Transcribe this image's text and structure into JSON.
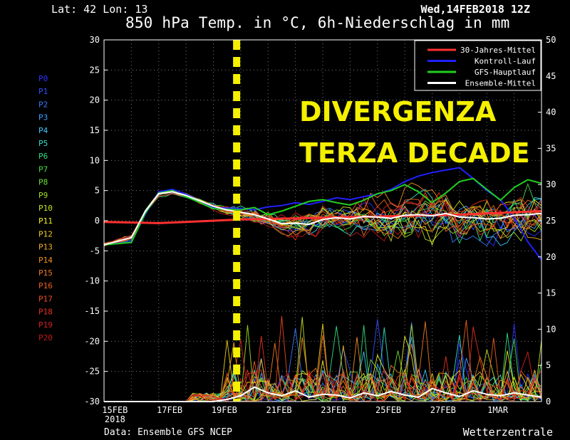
{
  "header": {
    "location": "Lat: 42 Lon: 13",
    "run": "Wed,14FEB2018 12Z",
    "title": "850 hPa Temp. in °C, 6h-Niederschlag in mm"
  },
  "footer": {
    "source": "Data: Ensemble GFS NCEP",
    "brand": "Wetterzentrale"
  },
  "annotation": {
    "line1": "DIVERGENZA",
    "line2": "TERZA DECADE",
    "color": "#f5f000"
  },
  "members": [
    {
      "label": "P0",
      "color": "#3030ff"
    },
    {
      "label": "P1",
      "color": "#3050ff"
    },
    {
      "label": "P2",
      "color": "#3878ff"
    },
    {
      "label": "P3",
      "color": "#40a0ff"
    },
    {
      "label": "P4",
      "color": "#40c8ff"
    },
    {
      "label": "P5",
      "color": "#30e0c8"
    },
    {
      "label": "P6",
      "color": "#30e080"
    },
    {
      "label": "P7",
      "color": "#40e040"
    },
    {
      "label": "P8",
      "color": "#70e030"
    },
    {
      "label": "P9",
      "color": "#a0e020"
    },
    {
      "label": "P10",
      "color": "#c8e020"
    },
    {
      "label": "P11",
      "color": "#f0f020"
    },
    {
      "label": "P12",
      "color": "#f0d020"
    },
    {
      "label": "P13",
      "color": "#f0b020"
    },
    {
      "label": "P14",
      "color": "#f09020"
    },
    {
      "label": "P15",
      "color": "#f07820"
    },
    {
      "label": "P16",
      "color": "#f06020"
    },
    {
      "label": "P17",
      "color": "#f04820"
    },
    {
      "label": "P18",
      "color": "#e83020"
    },
    {
      "label": "P19",
      "color": "#d82020"
    },
    {
      "label": "P20",
      "color": "#c01818"
    }
  ],
  "chart_data": {
    "type": "line",
    "x_axis": {
      "ticks": [
        "15FEB",
        "17FEB",
        "19FEB",
        "21FEB",
        "23FEB",
        "25FEB",
        "27FEB",
        "1MAR"
      ],
      "year_label": "2018",
      "range_days": [
        0,
        16
      ]
    },
    "y_left": {
      "range": [
        -30,
        30
      ],
      "ticks": [
        -30,
        -25,
        -20,
        -15,
        -10,
        -5,
        0,
        5,
        10,
        15,
        20,
        25,
        30
      ],
      "unit": "°C"
    },
    "y_right": {
      "range": [
        0,
        50
      ],
      "ticks": [
        0,
        5,
        10,
        15,
        20,
        25,
        30,
        35,
        40,
        45,
        50
      ],
      "unit": "mm"
    },
    "grid": true,
    "legend": {
      "position": "top-right",
      "entries": [
        {
          "name": "30-Jahres-Mittel",
          "color": "#ff3030"
        },
        {
          "name": "Kontroll-Lauf",
          "color": "#2020ff"
        },
        {
          "name": "GFS-Hauptlauf",
          "color": "#20d020"
        },
        {
          "name": "Ensemble-Mittel",
          "color": "#ffffff"
        }
      ]
    },
    "marker_line_day": 4.85,
    "series": [
      {
        "name": "30-Jahres-Mittel",
        "color": "#ff3030",
        "x": [
          0,
          1,
          2,
          3,
          4,
          5,
          6,
          7,
          8,
          9,
          10,
          11,
          12,
          13,
          14,
          15,
          16
        ],
        "y": [
          -0.2,
          -0.3,
          -0.4,
          -0.2,
          0,
          0.2,
          0.3,
          0.4,
          0.5,
          0.6,
          0.7,
          0.8,
          0.9,
          1.0,
          1.2,
          1.4,
          1.6
        ]
      },
      {
        "name": "Ensemble-Mittel",
        "color": "#ffffff",
        "x": [
          0,
          0.5,
          1,
          1.5,
          2,
          2.5,
          3,
          3.5,
          4,
          4.5,
          5,
          5.5,
          6,
          6.5,
          7,
          7.5,
          8,
          8.5,
          9,
          9.5,
          10,
          10.5,
          11,
          11.5,
          12,
          12.5,
          13,
          13.5,
          14,
          14.5,
          15,
          15.5,
          16
        ],
        "y": [
          -4,
          -3.4,
          -2.8,
          1.5,
          4.5,
          4.8,
          4.2,
          3.3,
          2.4,
          1.8,
          1.4,
          1.0,
          0.3,
          -0.5,
          -0.4,
          -0.6,
          0.2,
          0.5,
          0.3,
          0.7,
          0.6,
          0.4,
          0.9,
          1.0,
          0.8,
          1.2,
          0.6,
          0.5,
          0.3,
          0.4,
          0.9,
          1.0,
          1.2
        ]
      },
      {
        "name": "Kontroll-Lauf",
        "color": "#2020ff",
        "x": [
          0,
          1,
          1.5,
          2,
          2.5,
          3,
          4,
          5,
          5.5,
          6,
          6.5,
          7,
          7.5,
          8,
          8.5,
          9,
          9.5,
          10,
          10.5,
          11,
          11.5,
          12,
          12.5,
          13,
          13.5,
          14,
          14.5,
          15,
          15.5,
          16
        ],
        "y": [
          -4,
          -3.5,
          1,
          4.8,
          5.2,
          4.4,
          2.2,
          2.0,
          1.8,
          2.3,
          2.5,
          3.0,
          2.7,
          3.2,
          3.8,
          3.5,
          4.0,
          4.4,
          5.2,
          6.5,
          7.4,
          8.0,
          8.4,
          8.8,
          7.0,
          5.0,
          3.5,
          0.5,
          -3.5,
          -6.5
        ]
      },
      {
        "name": "GFS-Hauptlauf",
        "color": "#20d020",
        "x": [
          0,
          1,
          1.5,
          2,
          2.5,
          3,
          4,
          5,
          5.5,
          6,
          6.5,
          7,
          7.5,
          8,
          8.5,
          9,
          9.5,
          10,
          10.5,
          11,
          11.5,
          12,
          12.5,
          13,
          13.5,
          14,
          14.5,
          15,
          15.5,
          16
        ],
        "y": [
          -4,
          -3.6,
          1.2,
          4.6,
          5.0,
          4.0,
          2.0,
          1.8,
          2.2,
          1.0,
          1.6,
          2.4,
          3.2,
          3.5,
          3.0,
          2.6,
          3.4,
          4.5,
          5.0,
          6.0,
          4.8,
          3.0,
          4.6,
          6.5,
          7.0,
          5.2,
          3.4,
          5.5,
          6.8,
          6.2
        ]
      }
    ],
    "precip_mean": {
      "name": "Ensemble-Mittel",
      "x": [
        0,
        1,
        2,
        3,
        4,
        4.5,
        5,
        5.5,
        6,
        6.5,
        7,
        7.5,
        8,
        8.5,
        9,
        9.5,
        10,
        10.5,
        11,
        11.5,
        12,
        12.5,
        13,
        13.5,
        14,
        14.5,
        15,
        15.5,
        16
      ],
      "y": [
        0,
        0,
        0,
        0,
        0,
        0.3,
        0.8,
        2.0,
        1.2,
        0.8,
        1.5,
        0.6,
        1.0,
        0.9,
        0.5,
        1.2,
        0.8,
        1.4,
        0.9,
        0.6,
        1.8,
        1.2,
        0.7,
        1.5,
        1.0,
        0.8,
        1.2,
        0.9,
        0.6
      ]
    }
  }
}
